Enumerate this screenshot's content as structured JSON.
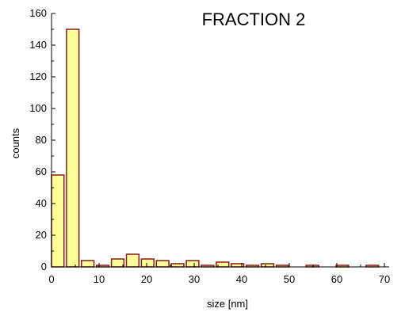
{
  "chart_data": {
    "type": "bar",
    "title": "FRACTION 2",
    "xlabel": "size [nm]",
    "ylabel": "counts",
    "xlim": [
      0,
      71
    ],
    "ylim": [
      0,
      160
    ],
    "xticks": [
      0,
      10,
      20,
      30,
      40,
      50,
      60,
      70
    ],
    "yticks": [
      0,
      20,
      40,
      60,
      80,
      100,
      120,
      140,
      160
    ],
    "bin_width": 2.63,
    "bins": [
      {
        "x0": 0.0,
        "value": 58
      },
      {
        "x0": 3.15,
        "value": 150
      },
      {
        "x0": 6.3,
        "value": 4
      },
      {
        "x0": 9.45,
        "value": 1
      },
      {
        "x0": 12.6,
        "value": 5
      },
      {
        "x0": 15.75,
        "value": 8
      },
      {
        "x0": 18.9,
        "value": 5
      },
      {
        "x0": 22.05,
        "value": 4
      },
      {
        "x0": 25.2,
        "value": 2
      },
      {
        "x0": 28.35,
        "value": 4
      },
      {
        "x0": 31.5,
        "value": 1
      },
      {
        "x0": 34.65,
        "value": 3
      },
      {
        "x0": 37.8,
        "value": 2
      },
      {
        "x0": 40.95,
        "value": 1
      },
      {
        "x0": 44.1,
        "value": 2
      },
      {
        "x0": 47.25,
        "value": 1
      },
      {
        "x0": 53.55,
        "value": 1
      },
      {
        "x0": 59.85,
        "value": 1
      },
      {
        "x0": 66.15,
        "value": 1
      }
    ],
    "bar_fill": "#ffff99",
    "bar_stroke": "#8b1a1a",
    "grid": false
  }
}
